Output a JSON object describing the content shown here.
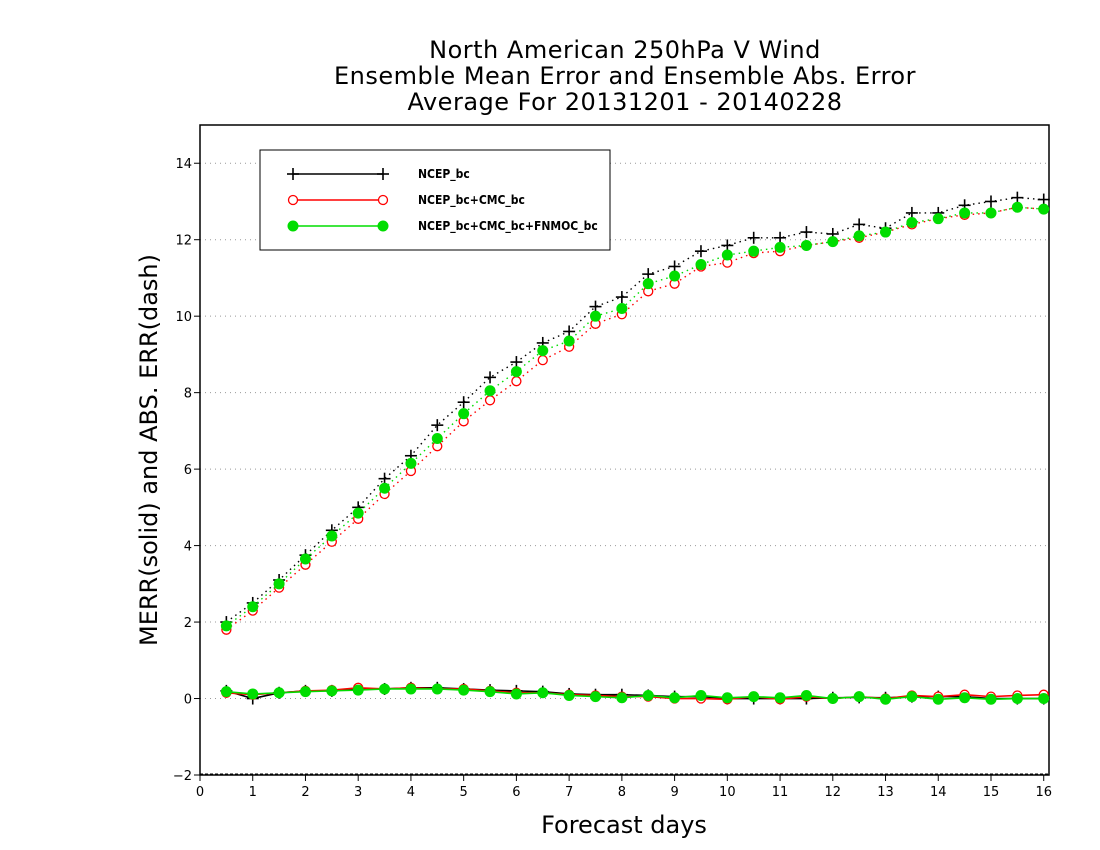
{
  "chart_data": {
    "type": "line",
    "title_lines": [
      "North American 250hPa V Wind",
      "Ensemble Mean Error and Ensemble Abs. Error",
      "Average For 20131201 - 20140228"
    ],
    "xlabel": "Forecast days",
    "ylabel": "MERR(solid) and ABS. ERR(dash)",
    "xlim": [
      0,
      16.1
    ],
    "ylim": [
      -2,
      15
    ],
    "xticks": [
      "0",
      "1",
      "2",
      "3",
      "4",
      "5",
      "6",
      "7",
      "8",
      "9",
      "10",
      "11",
      "12",
      "13",
      "14",
      "15",
      "16"
    ],
    "yticks": [
      "−2",
      "0",
      "2",
      "4",
      "6",
      "8",
      "10",
      "12",
      "14"
    ],
    "grid": "horizontal dotted",
    "legend_position": "top-left",
    "x": [
      0.5,
      1,
      1.5,
      2,
      2.5,
      3,
      3.5,
      4,
      4.5,
      5,
      5.5,
      6,
      6.5,
      7,
      7.5,
      8,
      8.5,
      9,
      9.5,
      10,
      10.5,
      11,
      11.5,
      12,
      12.5,
      13,
      13.5,
      14,
      14.5,
      15,
      15.5,
      16
    ],
    "series": [
      {
        "name": "NCEP_bc",
        "color": "#000000",
        "marker": "plus",
        "abs_err": [
          2.0,
          2.5,
          3.1,
          3.75,
          4.4,
          5.0,
          5.75,
          6.35,
          7.15,
          7.75,
          8.4,
          8.8,
          9.3,
          9.6,
          10.25,
          10.5,
          11.1,
          11.3,
          11.7,
          11.85,
          12.05,
          12.05,
          12.2,
          12.15,
          12.4,
          12.3,
          12.7,
          12.7,
          12.9,
          13.0,
          13.1,
          13.05
        ],
        "mean_err": [
          0.2,
          0.0,
          0.15,
          0.2,
          0.2,
          0.25,
          0.25,
          0.28,
          0.28,
          0.25,
          0.22,
          0.2,
          0.18,
          0.12,
          0.1,
          0.1,
          0.08,
          0.05,
          0.05,
          0.0,
          0.0,
          0.0,
          0.0,
          0.02,
          0.03,
          0.02,
          0.05,
          0.05,
          0.05,
          0.0,
          0.0,
          0.0
        ]
      },
      {
        "name": "NCEP_bc+CMC_bc",
        "color": "#ff0000",
        "marker": "open-circle",
        "abs_err": [
          1.8,
          2.3,
          2.9,
          3.5,
          4.1,
          4.7,
          5.35,
          5.95,
          6.6,
          7.25,
          7.8,
          8.3,
          8.85,
          9.2,
          9.8,
          10.05,
          10.65,
          10.85,
          11.3,
          11.4,
          11.65,
          11.7,
          11.85,
          11.95,
          12.05,
          12.2,
          12.4,
          12.55,
          12.65,
          12.7,
          12.85,
          12.8
        ],
        "mean_err": [
          0.15,
          0.1,
          0.15,
          0.2,
          0.22,
          0.28,
          0.25,
          0.28,
          0.25,
          0.25,
          0.2,
          0.15,
          0.15,
          0.1,
          0.08,
          0.05,
          0.05,
          0.0,
          0.0,
          -0.02,
          0.05,
          -0.02,
          0.05,
          0.0,
          0.05,
          0.0,
          0.08,
          0.05,
          0.1,
          0.05,
          0.08,
          0.1
        ]
      },
      {
        "name": "NCEP_bc+CMC_bc+FNMOC_bc",
        "color": "#00dd00",
        "marker": "filled-circle",
        "abs_err": [
          1.9,
          2.4,
          3.0,
          3.65,
          4.25,
          4.85,
          5.5,
          6.15,
          6.8,
          7.45,
          8.05,
          8.55,
          9.1,
          9.35,
          10.0,
          10.2,
          10.85,
          11.05,
          11.35,
          11.6,
          11.7,
          11.8,
          11.85,
          11.95,
          12.1,
          12.2,
          12.45,
          12.55,
          12.7,
          12.7,
          12.85,
          12.8
        ],
        "mean_err": [
          0.18,
          0.12,
          0.15,
          0.18,
          0.2,
          0.22,
          0.25,
          0.25,
          0.25,
          0.22,
          0.18,
          0.12,
          0.15,
          0.08,
          0.05,
          0.02,
          0.08,
          0.02,
          0.08,
          0.02,
          0.05,
          0.02,
          0.08,
          0.0,
          0.05,
          -0.02,
          0.05,
          -0.02,
          0.02,
          -0.02,
          0.0,
          0.0
        ]
      }
    ]
  }
}
